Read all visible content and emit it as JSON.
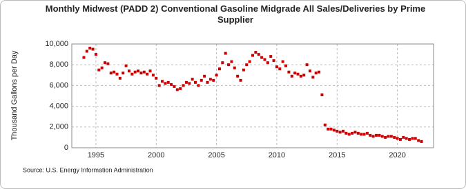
{
  "chart_data": {
    "type": "scatter",
    "title": "Monthly Midwest (PADD 2) Conventional Gasoline Midgrade All Sales/Deliveries by Prime Supplier",
    "y_label": "Thousand Gallons per Day",
    "source": "Source: U.S. Energy Information Administration",
    "xlim": [
      1993,
      2023
    ],
    "xticks": [
      1995,
      2000,
      2005,
      2010,
      2015,
      2020
    ],
    "ylim": [
      0,
      10000
    ],
    "yticks": [
      0,
      {
        "value": 2000,
        "label": "2,000"
      },
      {
        "value": 4000,
        "label": "4,000"
      },
      {
        "value": 6000,
        "label": "6,000"
      },
      {
        "value": 8000,
        "label": "8,000"
      },
      {
        "value": 10000,
        "label": "10,000"
      }
    ],
    "grid": true,
    "color": "#cc0000",
    "x": [
      1994.0,
      1994.25,
      1994.5,
      1994.75,
      1995.0,
      1995.25,
      1995.5,
      1995.75,
      1996.0,
      1996.25,
      1996.5,
      1996.75,
      1997.0,
      1997.25,
      1997.5,
      1997.75,
      1998.0,
      1998.25,
      1998.5,
      1998.75,
      1999.0,
      1999.25,
      1999.5,
      1999.75,
      2000.0,
      2000.25,
      2000.5,
      2000.75,
      2001.0,
      2001.25,
      2001.5,
      2001.75,
      2002.0,
      2002.25,
      2002.5,
      2002.75,
      2003.0,
      2003.25,
      2003.5,
      2003.75,
      2004.0,
      2004.25,
      2004.5,
      2004.75,
      2005.0,
      2005.25,
      2005.5,
      2005.75,
      2006.0,
      2006.25,
      2006.5,
      2006.75,
      2007.0,
      2007.25,
      2007.5,
      2007.75,
      2008.0,
      2008.25,
      2008.5,
      2008.75,
      2009.0,
      2009.25,
      2009.5,
      2009.75,
      2010.0,
      2010.25,
      2010.5,
      2010.75,
      2011.0,
      2011.25,
      2011.5,
      2011.75,
      2012.0,
      2012.25,
      2012.5,
      2012.75,
      2013.0,
      2013.25,
      2013.5,
      2013.75,
      2014.0,
      2014.25,
      2014.5,
      2014.75,
      2015.0,
      2015.25,
      2015.5,
      2015.75,
      2016.0,
      2016.25,
      2016.5,
      2016.75,
      2017.0,
      2017.25,
      2017.5,
      2017.75,
      2018.0,
      2018.25,
      2018.5,
      2018.75,
      2019.0,
      2019.25,
      2019.5,
      2019.75,
      2020.0,
      2020.25,
      2020.5,
      2020.75,
      2021.0,
      2021.25,
      2021.5,
      2021.75,
      2022.0
    ],
    "values": [
      8700,
      9300,
      9600,
      9500,
      9000,
      7500,
      7700,
      8200,
      8100,
      7200,
      7300,
      7100,
      6700,
      7200,
      7900,
      7400,
      7100,
      7300,
      7400,
      7200,
      7300,
      7100,
      7400,
      7000,
      6700,
      6000,
      6400,
      6200,
      6300,
      6100,
      5900,
      5600,
      5700,
      6000,
      6300,
      6200,
      6600,
      6300,
      6000,
      6500,
      6900,
      6300,
      6600,
      6500,
      7000,
      7600,
      8200,
      9100,
      8000,
      8300,
      7700,
      6900,
      6500,
      7500,
      8000,
      8300,
      8900,
      9200,
      9000,
      8700,
      8500,
      8200,
      8800,
      8400,
      7800,
      7600,
      8300,
      7900,
      7300,
      6900,
      7200,
      7100,
      6900,
      7000,
      8000,
      7400,
      6800,
      7200,
      7300,
      5100,
      2200,
      1800,
      1800,
      1700,
      1600,
      1500,
      1600,
      1400,
      1300,
      1400,
      1500,
      1400,
      1300,
      1300,
      1400,
      1200,
      1100,
      1200,
      1200,
      1100,
      1000,
      1100,
      1100,
      1000,
      900,
      800,
      1000,
      900,
      800,
      900,
      900,
      700,
      600
    ]
  }
}
